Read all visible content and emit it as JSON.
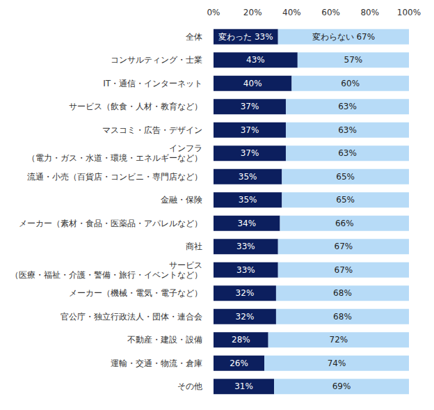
{
  "chart_data": {
    "type": "bar",
    "orientation": "horizontal",
    "stacked": true,
    "data_labels": true,
    "grid": false,
    "categories": [
      "全体",
      "コンサルティング・士業",
      "IT・通信・インターネット",
      "サービス（飲食・人材・教育など）",
      "マスコミ・広告・デザイン",
      "インフラ\n（電力・ガス・水道・環境・エネルギーなど）",
      "流通・小売（百貨店・コンビニ・専門店など）",
      "金融・保険",
      "メーカー（素材・食品・医薬品・アパレルなど）",
      "商社",
      "サービス\n（医療・福祉・介護・警備・旅行・イベントなど）",
      "メーカー（機械・電気・電子など）",
      "官公庁・独立行政法人・団体・連合会",
      "不動産・建設・設備",
      "運輸・交通・物流・倉庫",
      "その他"
    ],
    "series": [
      {
        "color": "#0c1f5e",
        "values": [
          33,
          43,
          40,
          37,
          37,
          37,
          35,
          35,
          34,
          33,
          33,
          32,
          32,
          28,
          26,
          31
        ],
        "value_labels": [
          "変わった 33%",
          "43%",
          "40%",
          "37%",
          "37%",
          "37%",
          "35%",
          "35%",
          "34%",
          "33%",
          "33%",
          "32%",
          "32%",
          "28%",
          "26%",
          "31%"
        ]
      },
      {
        "color": "#b7dbf7",
        "values": [
          67,
          57,
          60,
          63,
          63,
          63,
          65,
          65,
          66,
          67,
          67,
          68,
          68,
          72,
          74,
          69
        ],
        "value_labels": [
          "変わらない 67%",
          "57%",
          "60%",
          "63%",
          "63%",
          "63%",
          "65%",
          "65%",
          "66%",
          "67%",
          "67%",
          "68%",
          "68%",
          "72%",
          "74%",
          "69%"
        ]
      }
    ],
    "xlim": [
      0,
      100
    ],
    "xticks": [
      {
        "value": 0,
        "label": "0%"
      },
      {
        "value": 20,
        "label": "20%"
      },
      {
        "value": 40,
        "label": "40%"
      },
      {
        "value": 60,
        "label": "60%"
      },
      {
        "value": 80,
        "label": "80%"
      },
      {
        "value": 100,
        "label": "100%"
      }
    ]
  }
}
